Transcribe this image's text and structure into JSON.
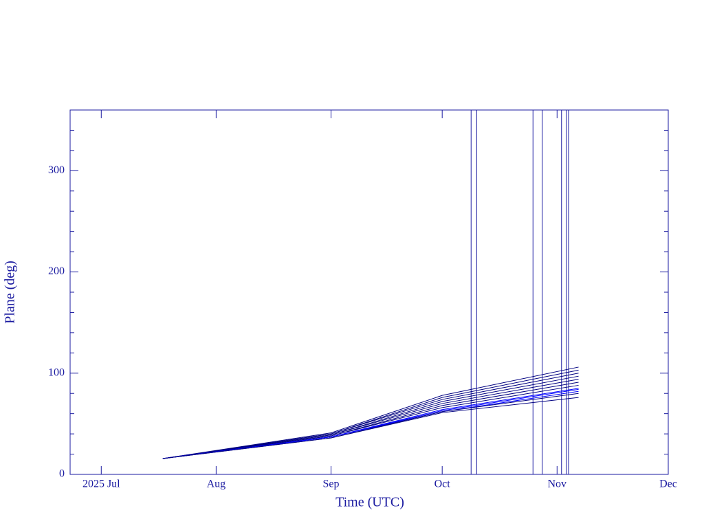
{
  "chart_data": {
    "type": "line",
    "x_label": "Time (UTC)",
    "y_label": "Plane (deg)",
    "xlim": [
      173.6,
      335
    ],
    "xticks": [
      {
        "value": 182,
        "label": "2025 Jul"
      },
      {
        "value": 213,
        "label": "Aug"
      },
      {
        "value": 244,
        "label": "Sep"
      },
      {
        "value": 274,
        "label": "Oct"
      },
      {
        "value": 305,
        "label": "Nov"
      },
      {
        "value": 335,
        "label": "Dec"
      }
    ],
    "ylim": [
      0,
      360
    ],
    "yticks": [
      0,
      100,
      200,
      300
    ],
    "yminorticks": [
      20,
      40,
      60,
      80,
      120,
      140,
      160,
      180,
      220,
      240,
      260,
      280,
      320,
      340
    ],
    "x": [
      198.6,
      244,
      274,
      310.8
    ],
    "series": [
      {
        "color": "#000080",
        "values": [
          15.6,
          41,
          78,
          106
        ]
      },
      {
        "color": "#000080",
        "values": [
          15.6,
          40,
          76,
          103
        ]
      },
      {
        "color": "#000080",
        "values": [
          15.6,
          40,
          74,
          100
        ]
      },
      {
        "color": "#000080",
        "values": [
          15.6,
          39,
          72,
          97
        ]
      },
      {
        "color": "#000080",
        "values": [
          15.6,
          39,
          70,
          94
        ]
      },
      {
        "color": "#000080",
        "values": [
          15.6,
          38,
          68,
          91
        ]
      },
      {
        "color": "#000080",
        "values": [
          15.6,
          38,
          66,
          88
        ]
      },
      {
        "color": "#0000ff",
        "values": [
          15.6,
          37,
          64,
          85
        ]
      },
      {
        "color": "#0000ff",
        "values": [
          15.6,
          37,
          63,
          84
        ]
      },
      {
        "color": "#0000ff",
        "values": [
          15.6,
          37,
          62,
          82
        ]
      },
      {
        "color": "#000080",
        "values": [
          15.6,
          36,
          62,
          80
        ]
      },
      {
        "color": "#000080",
        "values": [
          15.6,
          36,
          61,
          76
        ]
      }
    ],
    "vlines": [
      281.8,
      283.3,
      298.5,
      301,
      306.2,
      307.5,
      308.1
    ],
    "vline_color": "#1a1aa0"
  }
}
